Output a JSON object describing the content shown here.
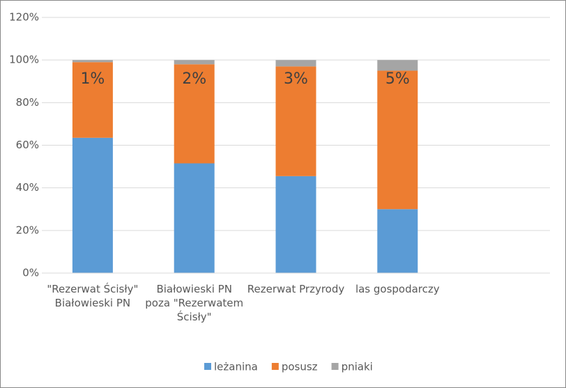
{
  "chart_data": {
    "type": "stacked_bar",
    "categories": [
      "\"Rezerwat Ścisły\" Białowieski PN",
      "Białowieski PN poza \"Rezerwatem Ścisły\"",
      "Rezerwat Przyrody",
      "las gospodarczy",
      null
    ],
    "series": [
      {
        "name": "leżanina",
        "color": "#5b9bd5",
        "values": [
          63.5,
          51.5,
          45.5,
          30,
          null
        ]
      },
      {
        "name": "posusz",
        "color": "#ed7d31",
        "values": [
          35.5,
          46.5,
          51.5,
          65,
          null
        ]
      },
      {
        "name": "pniaki",
        "color": "#a5a5a5",
        "values": [
          1,
          2,
          3,
          5,
          null
        ],
        "value_labels": [
          "1%",
          "2%",
          "3%",
          "5%",
          null
        ]
      }
    ],
    "ylim": [
      0,
      120
    ],
    "yticks": [
      {
        "value": 0,
        "label": "0%"
      },
      {
        "value": 20,
        "label": "20%"
      },
      {
        "value": 40,
        "label": "40%"
      },
      {
        "value": 60,
        "label": "60%"
      },
      {
        "value": 80,
        "label": "80%"
      },
      {
        "value": 100,
        "label": "100%"
      },
      {
        "value": 120,
        "label": "120%"
      }
    ],
    "grid": true,
    "legend": "bottom"
  }
}
